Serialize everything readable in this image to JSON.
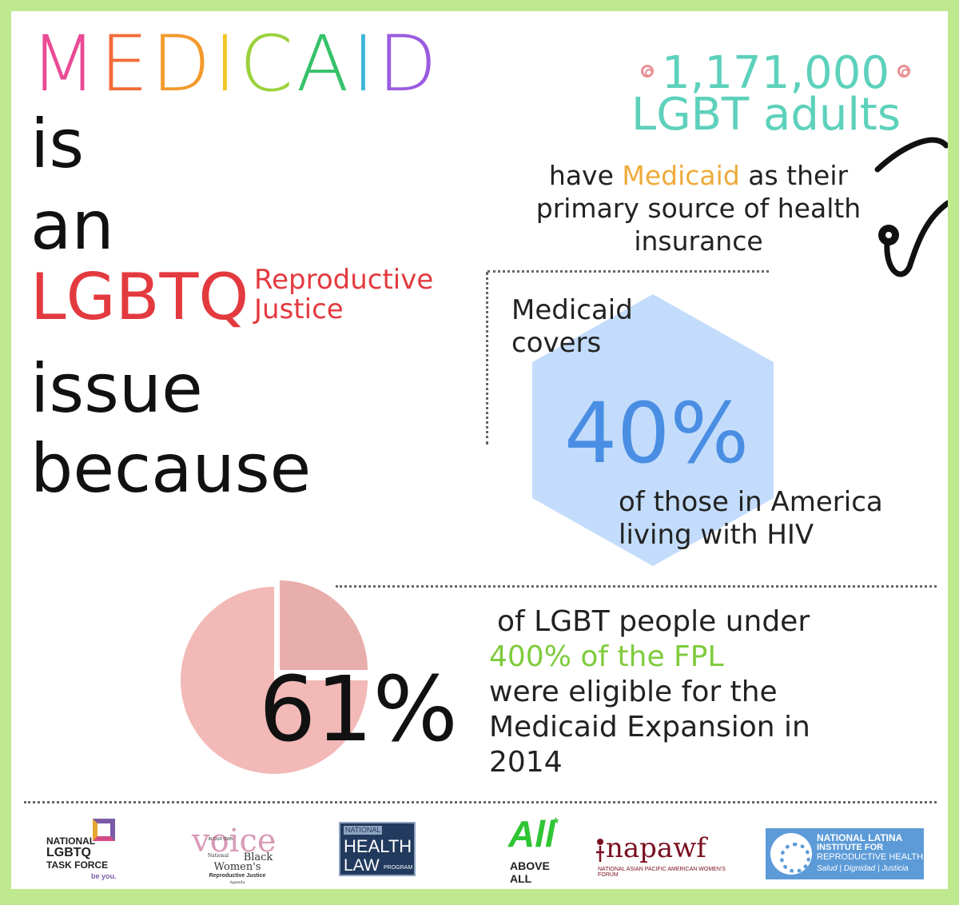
{
  "headline": {
    "letters": [
      {
        "char": "M",
        "color": "#e94b94"
      },
      {
        "char": "E",
        "color": "#f26b3a"
      },
      {
        "char": "D",
        "color": "#f39a2d"
      },
      {
        "char": "I",
        "color": "#f5c527"
      },
      {
        "char": "C",
        "color": "#9bd23c"
      },
      {
        "char": "A",
        "color": "#36c26a"
      },
      {
        "char": "I",
        "color": "#3cb6d9"
      },
      {
        "char": "D",
        "color": "#9a5be0"
      }
    ],
    "line_is": "is",
    "line_an": "an",
    "line_lgbtq": "LGBTQ",
    "rj_line1": "Reproductive",
    "rj_line2": "Justice",
    "line_issue": "issue",
    "line_because": "because"
  },
  "stat_adults": {
    "number": "1,171,000",
    "label": "LGBT adults",
    "pre": "have ",
    "highlight": "Medicaid",
    "post": " as their primary source of health insurance"
  },
  "stat_hiv": {
    "intro_line1": "Medicaid",
    "intro_line2": "covers",
    "percent": "40%",
    "desc_line1": "of those in America",
    "desc_line2": "living with HIV"
  },
  "stat_expansion": {
    "percent": "61%",
    "line1": "of LGBT people under",
    "highlight": "400% of the FPL",
    "line3": "were eligible for the",
    "line4": "Medicaid Expansion in",
    "line5": "2014"
  },
  "logos": {
    "taskforce": {
      "l1": "NATIONAL",
      "l2": "LGBTQ",
      "l3": "TASK FORCE",
      "tag": "be you."
    },
    "voice": {
      "name": "voice",
      "l1": "IN OUR OWN",
      "l2": "National",
      "l3": "Black",
      "l4": "Women's",
      "l5": "Reproductive Justice",
      "l6": "Agenda"
    },
    "health_law": {
      "l1": "NATIONAL",
      "l2": "HEALTH",
      "l3": "LAW",
      "l4": "PROGRAM"
    },
    "above_all": {
      "mark": "All",
      "l1": "ABOVE",
      "l2": "ALL"
    },
    "napawf": {
      "name": "napawf",
      "sub": "NATIONAL ASIAN PACIFIC AMERICAN WOMEN'S FORUM"
    },
    "nlirh": {
      "l1": "NATIONAL LATINA",
      "l2": "INSTITUTE FOR",
      "l3": "REPRODUCTIVE HEALTH",
      "l4": "Salud | Dignidad | Justicia"
    }
  }
}
